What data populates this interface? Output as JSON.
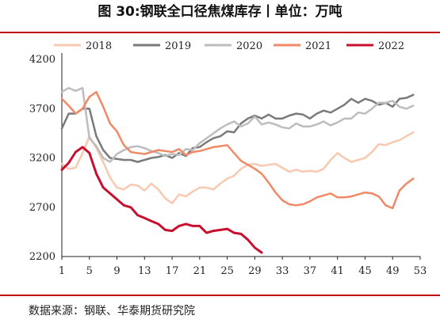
{
  "figure": {
    "title": "图 30:钢联全口径焦煤库存丨单位：万吨",
    "source": "数据来源：钢联、华泰期货研究院"
  },
  "chart_data": {
    "type": "line",
    "xlim": [
      1,
      53
    ],
    "ylim": [
      2200,
      4200
    ],
    "x_ticks": [
      1,
      5,
      9,
      13,
      17,
      21,
      25,
      29,
      33,
      37,
      41,
      45,
      49,
      53
    ],
    "y_ticks": [
      2200,
      2700,
      3200,
      3700,
      4200
    ],
    "grid": false,
    "legend_position": "top",
    "series": [
      {
        "name": "2018",
        "color": "#f7c9b0",
        "width": 2.5,
        "points": [
          [
            1,
            3140
          ],
          [
            2,
            3090
          ],
          [
            3,
            3100
          ],
          [
            4,
            3250
          ],
          [
            5,
            3420
          ],
          [
            6,
            3300
          ],
          [
            7,
            3160
          ],
          [
            8,
            3000
          ],
          [
            9,
            2900
          ],
          [
            10,
            2880
          ],
          [
            11,
            2930
          ],
          [
            12,
            2920
          ],
          [
            13,
            2870
          ],
          [
            14,
            2940
          ],
          [
            15,
            2880
          ],
          [
            16,
            2790
          ],
          [
            17,
            2740
          ],
          [
            18,
            2830
          ],
          [
            19,
            2810
          ],
          [
            20,
            2860
          ],
          [
            21,
            2900
          ],
          [
            22,
            2900
          ],
          [
            23,
            2880
          ],
          [
            24,
            2940
          ],
          [
            25,
            2990
          ],
          [
            26,
            3020
          ],
          [
            27,
            3090
          ],
          [
            28,
            3130
          ],
          [
            29,
            3140
          ],
          [
            30,
            3120
          ],
          [
            31,
            3130
          ],
          [
            32,
            3140
          ],
          [
            33,
            3100
          ],
          [
            34,
            3060
          ],
          [
            35,
            3080
          ],
          [
            36,
            3060
          ],
          [
            37,
            3070
          ],
          [
            38,
            3060
          ],
          [
            39,
            3090
          ],
          [
            40,
            3180
          ],
          [
            41,
            3250
          ],
          [
            42,
            3200
          ],
          [
            43,
            3160
          ],
          [
            44,
            3180
          ],
          [
            45,
            3200
          ],
          [
            46,
            3260
          ],
          [
            47,
            3340
          ],
          [
            48,
            3330
          ],
          [
            49,
            3360
          ],
          [
            50,
            3380
          ],
          [
            51,
            3420
          ],
          [
            52,
            3460
          ]
        ]
      },
      {
        "name": "2019",
        "color": "#7a7a7a",
        "width": 2.5,
        "points": [
          [
            1,
            3500
          ],
          [
            2,
            3650
          ],
          [
            3,
            3650
          ],
          [
            4,
            3700
          ],
          [
            5,
            3700
          ],
          [
            6,
            3420
          ],
          [
            7,
            3280
          ],
          [
            8,
            3200
          ],
          [
            9,
            3190
          ],
          [
            10,
            3180
          ],
          [
            11,
            3180
          ],
          [
            12,
            3160
          ],
          [
            13,
            3180
          ],
          [
            14,
            3200
          ],
          [
            15,
            3210
          ],
          [
            16,
            3230
          ],
          [
            17,
            3200
          ],
          [
            18,
            3250
          ],
          [
            19,
            3220
          ],
          [
            20,
            3300
          ],
          [
            21,
            3310
          ],
          [
            22,
            3360
          ],
          [
            23,
            3400
          ],
          [
            24,
            3420
          ],
          [
            25,
            3470
          ],
          [
            26,
            3460
          ],
          [
            27,
            3550
          ],
          [
            28,
            3600
          ],
          [
            29,
            3630
          ],
          [
            30,
            3600
          ],
          [
            31,
            3640
          ],
          [
            32,
            3600
          ],
          [
            33,
            3600
          ],
          [
            34,
            3630
          ],
          [
            35,
            3650
          ],
          [
            36,
            3640
          ],
          [
            37,
            3600
          ],
          [
            38,
            3650
          ],
          [
            39,
            3680
          ],
          [
            40,
            3660
          ],
          [
            41,
            3700
          ],
          [
            42,
            3740
          ],
          [
            43,
            3800
          ],
          [
            44,
            3760
          ],
          [
            45,
            3800
          ],
          [
            46,
            3780
          ],
          [
            47,
            3740
          ],
          [
            48,
            3760
          ],
          [
            49,
            3720
          ],
          [
            50,
            3800
          ],
          [
            51,
            3810
          ],
          [
            52,
            3840
          ]
        ]
      },
      {
        "name": "2020",
        "color": "#bdbdbd",
        "width": 2.5,
        "points": [
          [
            1,
            3870
          ],
          [
            2,
            3910
          ],
          [
            3,
            3880
          ],
          [
            4,
            3910
          ],
          [
            5,
            3400
          ],
          [
            6,
            3320
          ],
          [
            7,
            3200
          ],
          [
            8,
            3160
          ],
          [
            9,
            3240
          ],
          [
            10,
            3280
          ],
          [
            11,
            3310
          ],
          [
            12,
            3320
          ],
          [
            13,
            3300
          ],
          [
            14,
            3270
          ],
          [
            15,
            3250
          ],
          [
            16,
            3220
          ],
          [
            17,
            3240
          ],
          [
            18,
            3230
          ],
          [
            19,
            3290
          ],
          [
            20,
            3280
          ],
          [
            21,
            3350
          ],
          [
            22,
            3400
          ],
          [
            23,
            3450
          ],
          [
            24,
            3500
          ],
          [
            25,
            3540
          ],
          [
            26,
            3570
          ],
          [
            27,
            3520
          ],
          [
            28,
            3550
          ],
          [
            29,
            3620
          ],
          [
            30,
            3540
          ],
          [
            31,
            3560
          ],
          [
            32,
            3540
          ],
          [
            33,
            3510
          ],
          [
            34,
            3500
          ],
          [
            35,
            3550
          ],
          [
            36,
            3520
          ],
          [
            37,
            3520
          ],
          [
            38,
            3540
          ],
          [
            39,
            3570
          ],
          [
            40,
            3530
          ],
          [
            41,
            3560
          ],
          [
            42,
            3600
          ],
          [
            43,
            3600
          ],
          [
            44,
            3660
          ],
          [
            45,
            3650
          ],
          [
            46,
            3700
          ],
          [
            47,
            3760
          ],
          [
            48,
            3760
          ],
          [
            49,
            3780
          ],
          [
            50,
            3720
          ],
          [
            51,
            3700
          ],
          [
            52,
            3730
          ]
        ]
      },
      {
        "name": "2021",
        "color": "#f08a66",
        "width": 2.5,
        "points": [
          [
            1,
            3800
          ],
          [
            2,
            3730
          ],
          [
            3,
            3650
          ],
          [
            4,
            3700
          ],
          [
            5,
            3820
          ],
          [
            6,
            3870
          ],
          [
            7,
            3720
          ],
          [
            8,
            3550
          ],
          [
            9,
            3470
          ],
          [
            10,
            3330
          ],
          [
            11,
            3260
          ],
          [
            12,
            3250
          ],
          [
            13,
            3240
          ],
          [
            14,
            3260
          ],
          [
            15,
            3280
          ],
          [
            16,
            3270
          ],
          [
            17,
            3260
          ],
          [
            18,
            3290
          ],
          [
            19,
            3230
          ],
          [
            20,
            3260
          ],
          [
            21,
            3270
          ],
          [
            22,
            3290
          ],
          [
            23,
            3310
          ],
          [
            24,
            3320
          ],
          [
            25,
            3330
          ],
          [
            26,
            3250
          ],
          [
            27,
            3170
          ],
          [
            28,
            3130
          ],
          [
            29,
            3090
          ],
          [
            30,
            3040
          ],
          [
            31,
            2950
          ],
          [
            32,
            2850
          ],
          [
            33,
            2770
          ],
          [
            34,
            2730
          ],
          [
            35,
            2720
          ],
          [
            36,
            2730
          ],
          [
            37,
            2760
          ],
          [
            38,
            2800
          ],
          [
            39,
            2820
          ],
          [
            40,
            2840
          ],
          [
            41,
            2800
          ],
          [
            42,
            2800
          ],
          [
            43,
            2810
          ],
          [
            44,
            2830
          ],
          [
            45,
            2850
          ],
          [
            46,
            2840
          ],
          [
            47,
            2810
          ],
          [
            48,
            2720
          ],
          [
            49,
            2690
          ],
          [
            50,
            2870
          ],
          [
            51,
            2940
          ],
          [
            52,
            2990
          ]
        ]
      },
      {
        "name": "2022",
        "color": "#c8102e",
        "width": 3,
        "points": [
          [
            1,
            3080
          ],
          [
            2,
            3150
          ],
          [
            3,
            3260
          ],
          [
            4,
            3310
          ],
          [
            5,
            3250
          ],
          [
            6,
            3040
          ],
          [
            7,
            2900
          ],
          [
            8,
            2840
          ],
          [
            9,
            2780
          ],
          [
            10,
            2720
          ],
          [
            11,
            2700
          ],
          [
            12,
            2620
          ],
          [
            13,
            2590
          ],
          [
            14,
            2560
          ],
          [
            15,
            2530
          ],
          [
            16,
            2470
          ],
          [
            17,
            2460
          ],
          [
            18,
            2510
          ],
          [
            19,
            2530
          ],
          [
            20,
            2510
          ],
          [
            21,
            2510
          ],
          [
            22,
            2440
          ],
          [
            23,
            2460
          ],
          [
            24,
            2470
          ],
          [
            25,
            2480
          ],
          [
            26,
            2440
          ],
          [
            27,
            2430
          ],
          [
            28,
            2370
          ],
          [
            29,
            2290
          ],
          [
            30,
            2240
          ]
        ]
      }
    ]
  }
}
